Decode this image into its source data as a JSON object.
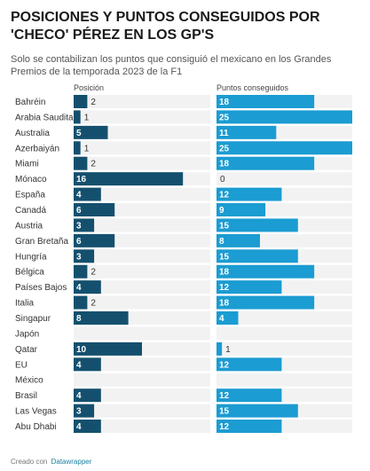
{
  "title": "POSICIONES Y PUNTOS CONSEGUIDOS POR 'CHECO' PÉREZ EN LOS GP'S",
  "subtitle": "Solo se contabilizan los puntos que consiguió el mexicano en los Grandes Premios de la temporada 2023 de la F1",
  "footer": {
    "prefix": "Creado con",
    "brand": "Datawrapper"
  },
  "colors": {
    "position_bar": "#14506e",
    "points_bar": "#1b9cd2",
    "track": "#f2f2f2"
  },
  "chart_data": {
    "type": "bar",
    "categories": [
      "Bahréin",
      "Arabia Saudita",
      "Australia",
      "Azerbaiyán",
      "Miami",
      "Mónaco",
      "España",
      "Canadá",
      "Austria",
      "Gran Bretaña",
      "Hungría",
      "Bélgica",
      "Países Bajos",
      "Italia",
      "Singapur",
      "Japón",
      "Qatar",
      "EU",
      "México",
      "Brasil",
      "Las Vegas",
      "Abu Dhabi"
    ],
    "series": [
      {
        "name": "Posición",
        "values": [
          2,
          1,
          5,
          1,
          2,
          16,
          4,
          6,
          3,
          6,
          3,
          2,
          4,
          2,
          8,
          null,
          10,
          4,
          null,
          4,
          3,
          4
        ],
        "xlim": [
          0,
          20
        ]
      },
      {
        "name": "Puntos conseguidos",
        "values": [
          18,
          25,
          11,
          25,
          18,
          0,
          12,
          9,
          15,
          8,
          15,
          18,
          12,
          18,
          4,
          null,
          1,
          12,
          null,
          12,
          15,
          12
        ],
        "xlim": [
          0,
          25
        ]
      }
    ]
  }
}
